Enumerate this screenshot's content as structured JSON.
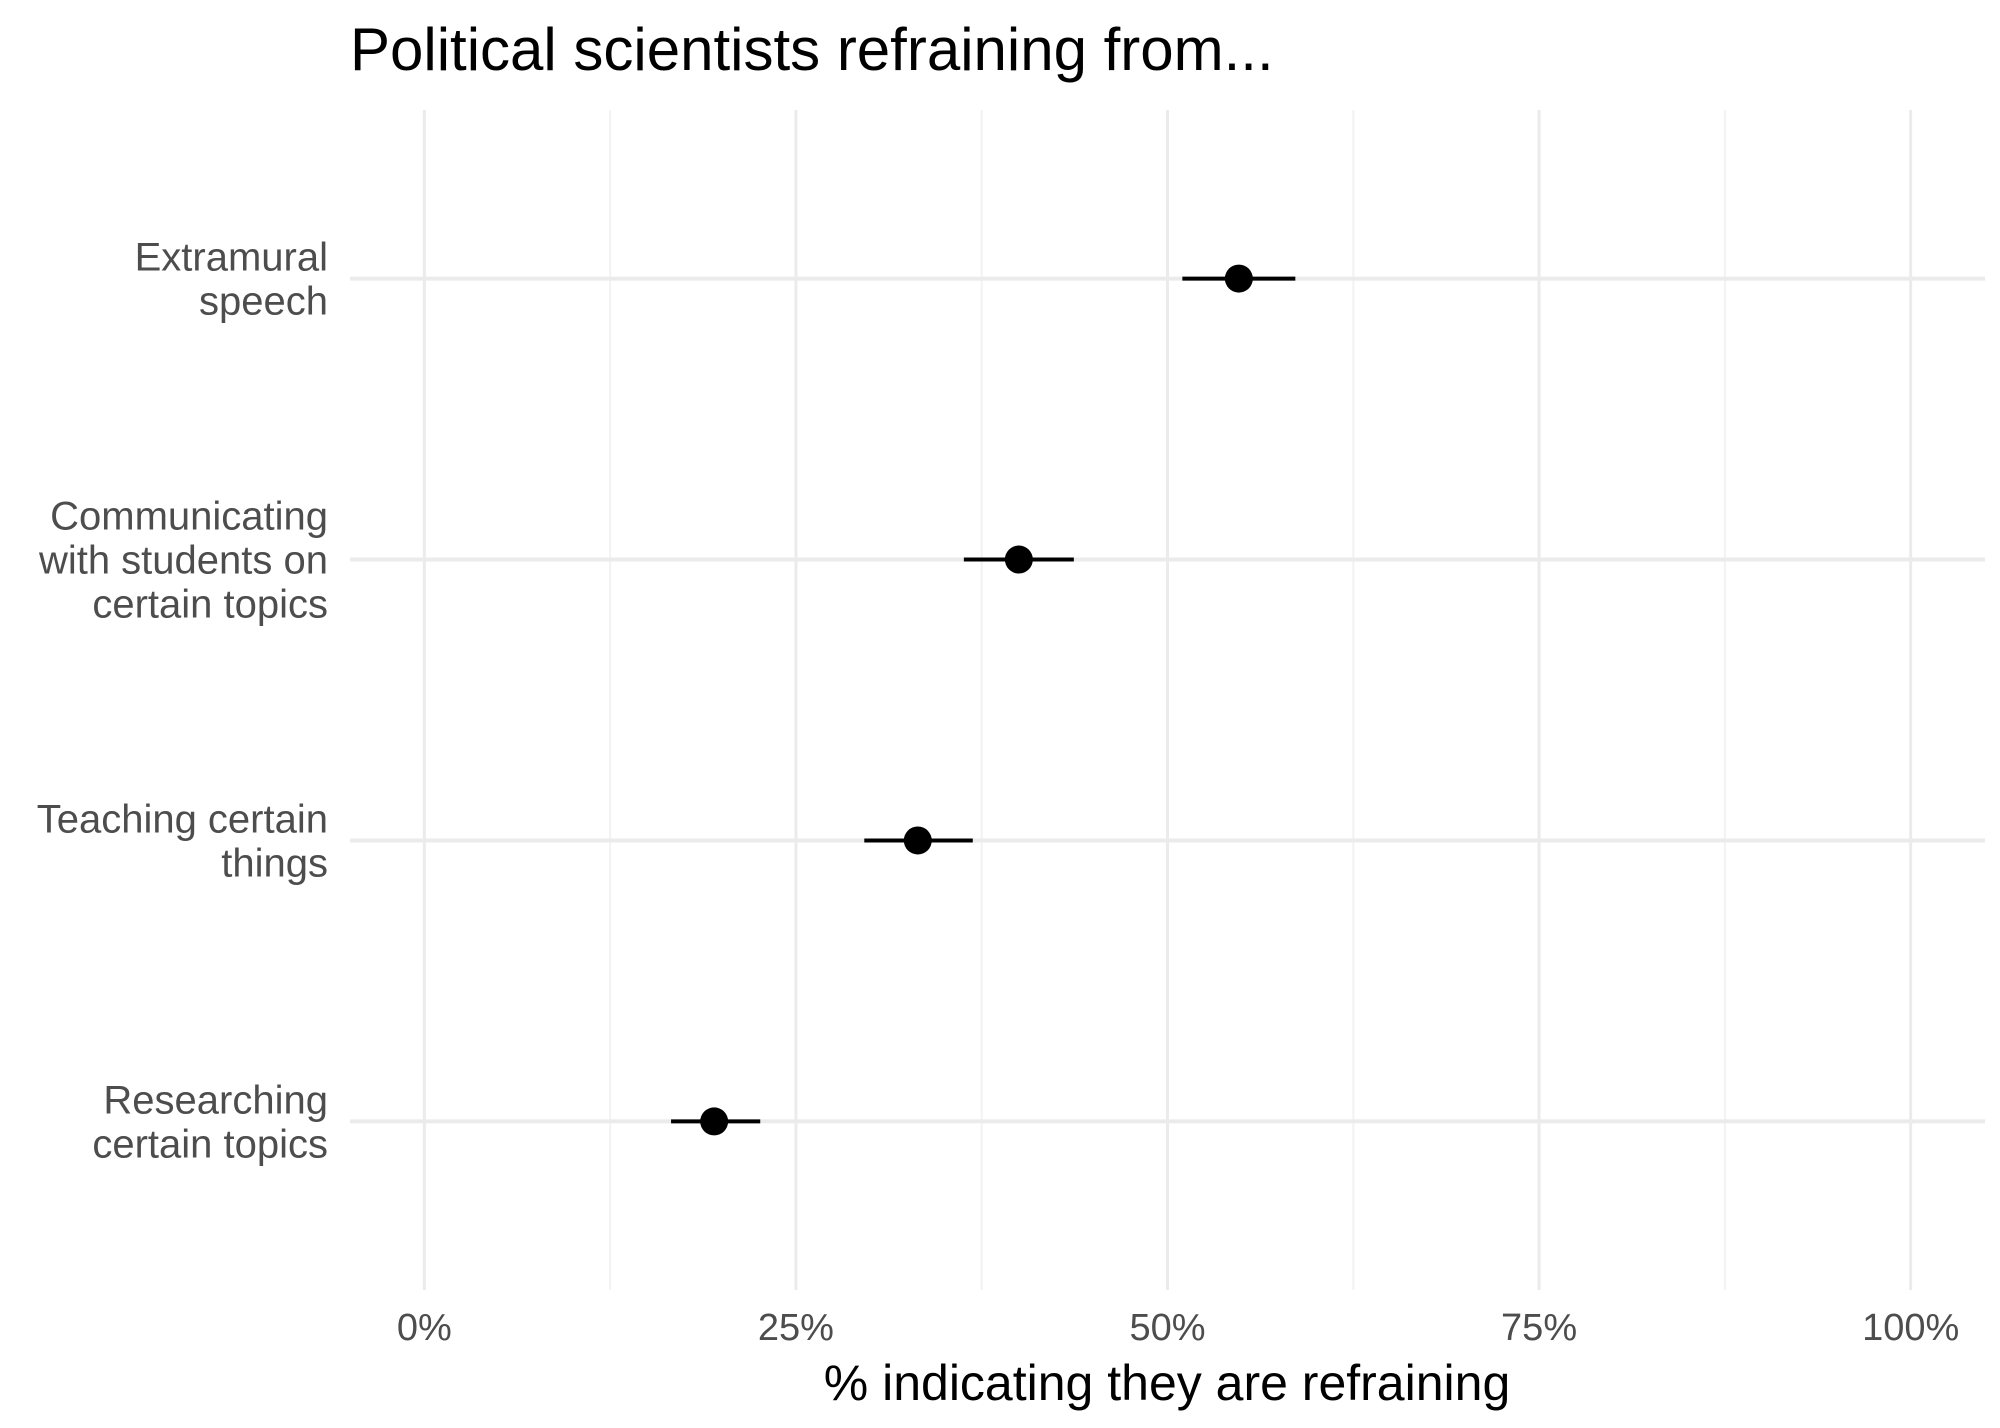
{
  "chart_data": {
    "type": "scatter",
    "title": "Political scientists refraining from...",
    "xlabel": "% indicating they are refraining",
    "ylabel": "",
    "xlim": [
      -5,
      105
    ],
    "grid": true,
    "x_ticks": [
      0,
      25,
      50,
      75,
      100
    ],
    "x_tick_labels": [
      "0%",
      "25%",
      "50%",
      "75%",
      "100%"
    ],
    "categories": [
      [
        "Extramural",
        "speech"
      ],
      [
        "Communicating",
        "with students on",
        "certain topics"
      ],
      [
        "Teaching certain",
        "things"
      ],
      [
        "Researching",
        "certain topics"
      ]
    ],
    "series": [
      {
        "values": [
          54.8,
          40.0,
          33.2,
          19.5
        ],
        "lower": [
          51.0,
          36.3,
          29.6,
          16.6
        ],
        "upper": [
          58.6,
          43.7,
          36.9,
          22.6
        ]
      }
    ],
    "colors": {
      "point": "#000000",
      "grid_major": "#ebebeb",
      "grid_minor": "#f2f2f2",
      "text_axis": "#4d4d4d",
      "text_title": "#000000"
    }
  }
}
